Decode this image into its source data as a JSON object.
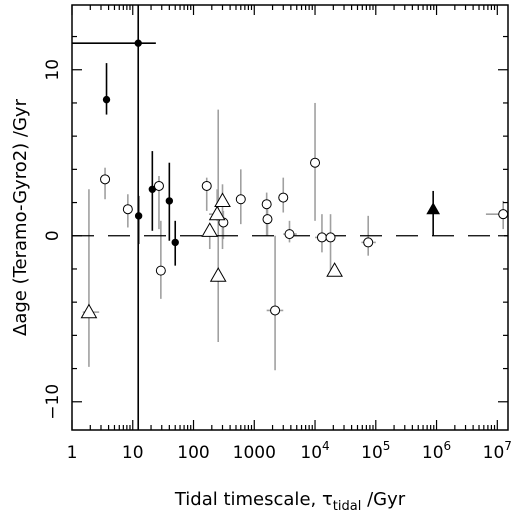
{
  "chart_data": {
    "type": "scatter",
    "xlabel": "Tidal timescale, τ",
    "xlabel_subscript": "tidal",
    "xlabel_suffix": " /Gyr",
    "ylabel": "Δage (Teramo-Gyro2) /Gyr",
    "xscale": "log",
    "xlim": [
      1,
      15000000
    ],
    "ylim": [
      -11.7,
      13.9
    ],
    "grid": false,
    "x_ticks": [
      {
        "value": 1,
        "label": "1"
      },
      {
        "value": 10,
        "label": "10"
      },
      {
        "value": 100,
        "label": "100"
      },
      {
        "value": 1000,
        "label": "1000"
      },
      {
        "value": 10000,
        "label": "10",
        "exp": "4"
      },
      {
        "value": 100000,
        "label": "10",
        "exp": "5"
      },
      {
        "value": 1000000,
        "label": "10",
        "exp": "6"
      },
      {
        "value": 10000000,
        "label": "10",
        "exp": "7"
      }
    ],
    "y_ticks": [
      {
        "value": -10,
        "label": "−10"
      },
      {
        "value": 0,
        "label": "0"
      },
      {
        "value": 10,
        "label": "10"
      }
    ],
    "reference_line": {
      "y": 0,
      "style": "dashed"
    },
    "series": [
      {
        "marker": "filled-circle",
        "color": "#000000",
        "points": [
          {
            "x": 3.7,
            "y": 8.2,
            "ylo": 7.3,
            "yhi": 10.4
          },
          {
            "x": 12.3,
            "y": 11.6,
            "ylo": -11.7,
            "yhi": 13.9,
            "xlo": 1,
            "xhi": 24
          },
          {
            "x": 12.5,
            "y": 1.2,
            "ylo": -0.5,
            "yhi": 2.4
          },
          {
            "x": 21,
            "y": 2.8,
            "ylo": 0.3,
            "yhi": 5.1
          },
          {
            "x": 40,
            "y": 2.1,
            "ylo": -0.3,
            "yhi": 4.4
          },
          {
            "x": 50,
            "y": -0.4,
            "ylo": -1.8,
            "yhi": 0.9
          }
        ]
      },
      {
        "marker": "filled-triangle",
        "color": "#000000",
        "points": [
          {
            "x": 880000,
            "y": 1.6,
            "ylo": 0,
            "yhi": 2.7
          }
        ]
      },
      {
        "marker": "open-circle",
        "color": "#000000",
        "errcolor": "#a0a0a0",
        "points": [
          {
            "x": 3.5,
            "y": 3.4,
            "ylo": 2.2,
            "yhi": 4.1
          },
          {
            "x": 8.3,
            "y": 1.6,
            "ylo": 0.5,
            "yhi": 2.5
          },
          {
            "x": 27,
            "y": 3.0,
            "ylo": 0.4,
            "yhi": 3.6
          },
          {
            "x": 29,
            "y": -2.1,
            "ylo": -3.8,
            "yhi": 0.9
          },
          {
            "x": 165,
            "y": 3.0,
            "ylo": 1.5,
            "yhi": 3.5
          },
          {
            "x": 310,
            "y": 0.8,
            "ylo": -0.2,
            "yhi": 1.5
          },
          {
            "x": 600,
            "y": 2.2,
            "ylo": 0.7,
            "yhi": 4.0
          },
          {
            "x": 1600,
            "y": 1.9,
            "ylo": 0,
            "yhi": 2.6
          },
          {
            "x": 1650,
            "y": 1.0,
            "ylo": 0,
            "yhi": 1.6
          },
          {
            "x": 2200,
            "y": -4.5,
            "ylo": -8.1,
            "yhi": 0,
            "xlo": 1600,
            "xhi": 3000
          },
          {
            "x": 3000,
            "y": 2.3,
            "ylo": 1.4,
            "yhi": 3.5
          },
          {
            "x": 3800,
            "y": 0.1,
            "ylo": -0.4,
            "yhi": 0.9,
            "xlo": 3000,
            "xhi": 5000
          },
          {
            "x": 10000,
            "y": 4.4,
            "ylo": 0.9,
            "yhi": 8.0
          },
          {
            "x": 13000,
            "y": -0.1,
            "ylo": -1.0,
            "yhi": 1.3,
            "xlo": 10000,
            "xhi": 16000
          },
          {
            "x": 18000,
            "y": -0.1,
            "ylo": -2.1,
            "yhi": 1.3
          },
          {
            "x": 75000,
            "y": -0.4,
            "ylo": -1.2,
            "yhi": 1.2,
            "xlo": 58000,
            "xhi": 100000
          },
          {
            "x": 12500000,
            "y": 1.3,
            "ylo": 0.4,
            "yhi": 2.1,
            "xlo": 6500000,
            "xhi": 15000000
          }
        ]
      },
      {
        "marker": "open-triangle",
        "color": "#000000",
        "errcolor": "#a0a0a0",
        "points": [
          {
            "x": 1.9,
            "y": -4.6,
            "ylo": -7.9,
            "yhi": 2.8,
            "xlo": 1.5,
            "xhi": 2.8
          },
          {
            "x": 185,
            "y": 0.3,
            "ylo": -0.8,
            "yhi": 0.6
          },
          {
            "x": 245,
            "y": 1.3,
            "ylo": 0.9,
            "yhi": 2.8,
            "xlo": 180,
            "xhi": 310
          },
          {
            "x": 255,
            "y": -2.4,
            "ylo": -6.4,
            "yhi": 7.6
          },
          {
            "x": 300,
            "y": 2.1,
            "ylo": -0.8,
            "yhi": 3.1
          },
          {
            "x": 21000,
            "y": -2.1,
            "ylo": -2.3,
            "yhi": -1.7
          }
        ]
      }
    ]
  }
}
